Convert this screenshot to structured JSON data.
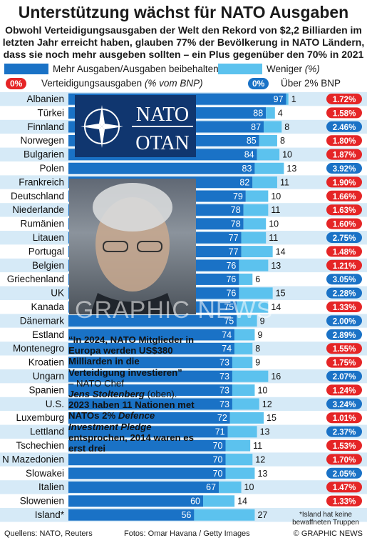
{
  "title": "Unterstützung wächst für NATO Ausgaben",
  "subtitle": "Obwohl Verteidigungsausgaben der Welt den Rekord von $2,2 Billiarden im letzten Jahr erreicht haben, glauben 77% der Bevölkerung in NATO Ländern, dass sie noch mehr ausgeben sollten – ein Plus gegenüber den 70%  in 2021",
  "legend": {
    "more": "Mehr Ausgaben/Ausgaben beibehalten",
    "less": "Weniger",
    "pct_unit": "(%)",
    "spend_pill": "0%",
    "spend_label": "Verteidigungsausgaben",
    "spend_unit": "(% vom BNP)",
    "over_pill": "0%",
    "over_label": "Über 2% BNP"
  },
  "colors": {
    "more": "#1a72c6",
    "less": "#5cc2ee",
    "under2": "#e52526",
    "over2": "#1a72c6",
    "row_a": "#d6eaf7",
    "row_b": "#ffffff"
  },
  "chart_data": {
    "type": "bar",
    "stacked": true,
    "orientation": "horizontal",
    "categories": [
      "Albanien",
      "Türkei",
      "Finnland",
      "Norwegen",
      "Bulgarien",
      "Polen",
      "Frankreich",
      "Deutschland",
      "Niederlande",
      "Rumänien",
      "Litauen",
      "Portugal",
      "Belgien",
      "Griechenland",
      "UK",
      "Kanada",
      "Dänemark",
      "Estland",
      "Montenegro",
      "Kroatien",
      "Ungarn",
      "Spanien",
      "U.S.",
      "Luxemburg",
      "Lettland",
      "Tschechien",
      "N Mazedonien",
      "Slowakei",
      "Italien",
      "Slowenien",
      "Island*"
    ],
    "series": [
      {
        "name": "Mehr Ausgaben/Ausgaben beibehalten",
        "values": [
          97,
          88,
          87,
          85,
          84,
          83,
          82,
          79,
          78,
          78,
          77,
          77,
          76,
          76,
          76,
          75,
          75,
          74,
          74,
          73,
          73,
          73,
          73,
          72,
          71,
          70,
          70,
          70,
          67,
          60,
          56
        ]
      },
      {
        "name": "Weniger",
        "values": [
          1,
          4,
          8,
          8,
          10,
          13,
          11,
          10,
          11,
          10,
          11,
          14,
          13,
          6,
          15,
          14,
          9,
          9,
          8,
          9,
          16,
          10,
          12,
          15,
          13,
          11,
          12,
          13,
          10,
          14,
          27
        ]
      }
    ],
    "defence_spending_pct_gnp": [
      "1.72%",
      "1.58%",
      "2.46%",
      "1.80%",
      "1.87%",
      "3.92%",
      "1.90%",
      "1.66%",
      "1.63%",
      "1.60%",
      "2.75%",
      "1.48%",
      "1.21%",
      "3.05%",
      "2.28%",
      "1.33%",
      "2.00%",
      "2.89%",
      "1.55%",
      "1.75%",
      "2.07%",
      "1.24%",
      "3.24%",
      "1.01%",
      "2.37%",
      "1.53%",
      "1.70%",
      "2.05%",
      "1.47%",
      "1.33%",
      ""
    ],
    "over_2pct": [
      false,
      false,
      true,
      false,
      false,
      true,
      false,
      false,
      false,
      false,
      true,
      false,
      false,
      true,
      true,
      false,
      true,
      true,
      false,
      false,
      true,
      false,
      true,
      false,
      true,
      false,
      false,
      true,
      false,
      false,
      false
    ],
    "xlim": [
      0,
      100
    ]
  },
  "photo": {
    "nato_text": "NATO",
    "otan_text": "OTAN",
    "watermark": "GRAPHIC NEWS"
  },
  "quote": {
    "text": "“In 2024, NATO Mitglieder in Europa werden US$380 Milliarden in die Verteidigung investieren”",
    "attribution": "– NATO Chef",
    "name": "Jens Stoltenberg",
    "name_suffix": "(oben).",
    "fact_a": "2023 haben 11 Nationen met NATOs 2%",
    "fact_b": "Defence Investment Pledge",
    "fact_c": "entsprochen, 2014 waren es erst drei"
  },
  "note": "*Island hat keine bewaffneten Truppen",
  "footer": {
    "sources": "Quellens: NATO, Reuters",
    "photos": "Fotos: Omar Havana / Getty Images",
    "copyright": "© GRAPHIC NEWS"
  }
}
